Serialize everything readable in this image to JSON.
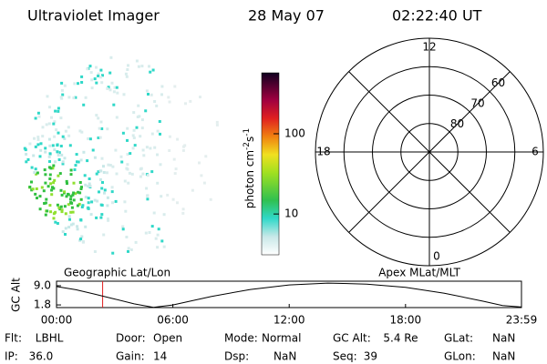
{
  "header": {
    "instrument": "Ultraviolet Imager",
    "date": "28 May 07",
    "time": "02:22:40 UT"
  },
  "colorbar": {
    "label": [
      "photon cm",
      "-2",
      "s",
      "-1"
    ],
    "scale": "log",
    "lim": [
      3.1,
      575
    ],
    "ticks": [
      10,
      100
    ]
  },
  "polar": {
    "mlt_ticks": [
      12,
      6,
      0,
      18
    ],
    "lat_ticks": [
      60,
      70,
      80
    ],
    "rlim": [
      90,
      50
    ]
  },
  "altitude_plot": {
    "left_title": "Geographic Lat/Lon",
    "right_title": "Apex MLat/MLT",
    "ylabel": "GC Alt",
    "ylim": [
      0.8,
      10.7
    ],
    "yticks": [
      {
        "value": 9.0,
        "label": "9.0"
      },
      {
        "value": 1.8,
        "label": "1.8"
      }
    ],
    "xlim": [
      0,
      23.98
    ],
    "xticks": [
      {
        "value": 0,
        "label": "00:00"
      },
      {
        "value": 6,
        "label": "06:00"
      },
      {
        "value": 12,
        "label": "12:00"
      },
      {
        "value": 18,
        "label": "18:00"
      },
      {
        "value": 23.98,
        "label": "23:59"
      }
    ],
    "x": [
      0,
      1,
      2,
      3,
      4,
      5,
      6,
      8,
      10,
      12,
      14,
      16,
      18,
      20,
      22,
      23,
      23.98
    ],
    "values": [
      8.7,
      7.5,
      5.8,
      4.0,
      2.2,
      0.9,
      1.8,
      5.0,
      7.6,
      9.3,
      10.0,
      9.6,
      8.4,
      6.2,
      3.2,
      1.6,
      1.0
    ],
    "marker_time": 2.378,
    "marker_color": "#e02020"
  },
  "info": [
    [
      [
        "Flt:",
        "LBHL"
      ],
      [
        "Door:",
        "Open"
      ],
      [
        "Mode:",
        "Normal"
      ],
      [
        "GC Alt:",
        "5.4 Re"
      ],
      [
        "GLat:",
        "NaN"
      ]
    ],
    [
      [
        "IP:",
        "36.0"
      ],
      [
        "Gain:",
        "14"
      ],
      [
        "Dsp:",
        "NaN"
      ],
      [
        "Seq:",
        "39"
      ],
      [
        "GLon:",
        "NaN"
      ]
    ]
  ]
}
